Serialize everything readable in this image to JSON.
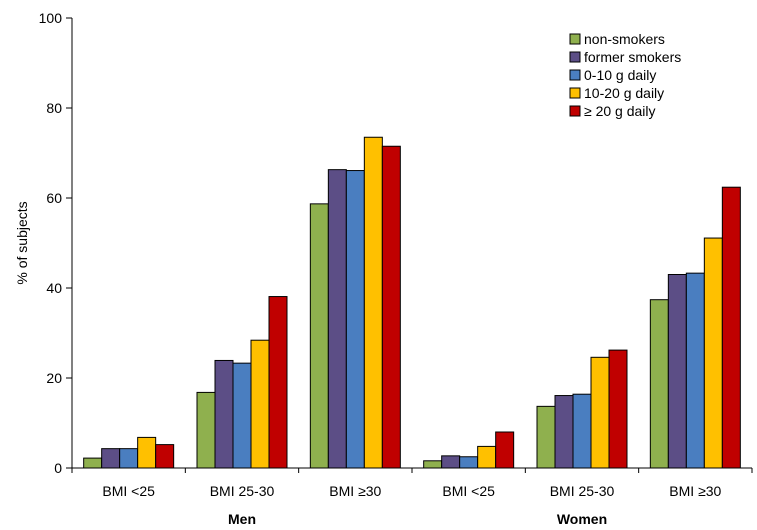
{
  "chart_data": {
    "type": "bar",
    "title": "",
    "xlabel": "",
    "ylabel": "% of subjects",
    "ylim": [
      0,
      100
    ],
    "yticks": [
      "0",
      "20",
      "40",
      "60",
      "80",
      "100"
    ],
    "grid": false,
    "legend_position": "top-right",
    "categories": [
      "BMI <25",
      "BMI 25-30",
      "BMI ≥30",
      "BMI <25",
      "BMI 25-30",
      "BMI ≥30"
    ],
    "groups": [
      {
        "label": "Men",
        "categories": [
          0,
          1,
          2
        ]
      },
      {
        "label": "Women",
        "categories": [
          3,
          4,
          5
        ]
      }
    ],
    "series": [
      {
        "name": "non-smokers",
        "color": "#8FB04E",
        "values": [
          2.2,
          16.8,
          58.7,
          1.6,
          13.7,
          37.4
        ]
      },
      {
        "name": "former smokers",
        "color": "#5C4E86",
        "values": [
          4.3,
          23.9,
          66.3,
          2.7,
          16.1,
          43.0
        ]
      },
      {
        "name": "0-10 g daily",
        "color": "#4A7EC0",
        "values": [
          4.3,
          23.3,
          66.1,
          2.5,
          16.4,
          43.3
        ]
      },
      {
        "name": "10-20 g daily",
        "color": "#FFC000",
        "values": [
          6.8,
          28.4,
          73.5,
          4.8,
          24.6,
          51.1
        ]
      },
      {
        "name": "≥ 20 g daily",
        "color": "#C00000",
        "values": [
          5.2,
          38.1,
          71.5,
          8.0,
          26.2,
          62.4
        ]
      }
    ]
  }
}
